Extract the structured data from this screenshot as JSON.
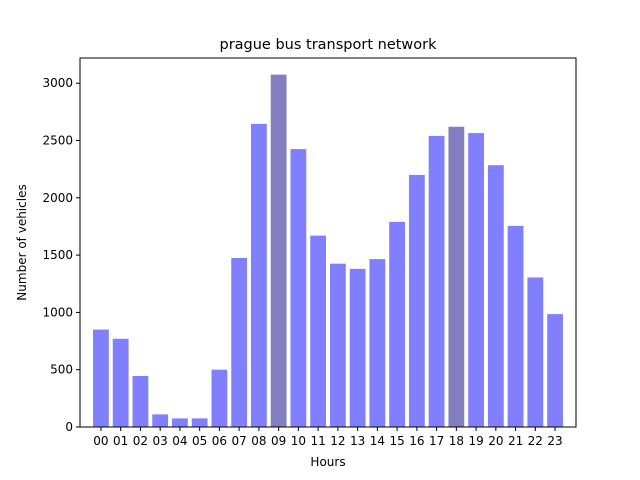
{
  "chart_data": {
    "type": "bar",
    "title": "prague bus transport network",
    "xlabel": "Hours",
    "ylabel": "Number of vehicles",
    "categories": [
      "00",
      "01",
      "02",
      "03",
      "04",
      "05",
      "06",
      "07",
      "08",
      "09",
      "10",
      "11",
      "12",
      "13",
      "14",
      "15",
      "16",
      "17",
      "18",
      "19",
      "20",
      "21",
      "22",
      "23"
    ],
    "values": [
      850,
      770,
      445,
      110,
      75,
      75,
      500,
      1475,
      2645,
      3075,
      2425,
      1670,
      1425,
      1380,
      1465,
      1790,
      2200,
      2540,
      2620,
      2565,
      2285,
      1755,
      1305,
      985
    ],
    "highlighted_categories": [
      "09",
      "18"
    ],
    "ylim": [
      0,
      3220
    ],
    "yticks": [
      0,
      500,
      1000,
      1500,
      2000,
      2500,
      3000
    ],
    "grid": false,
    "colors": {
      "bar": "#8080ff",
      "bar_highlight": "#8080c0",
      "axis": "#000000"
    }
  }
}
